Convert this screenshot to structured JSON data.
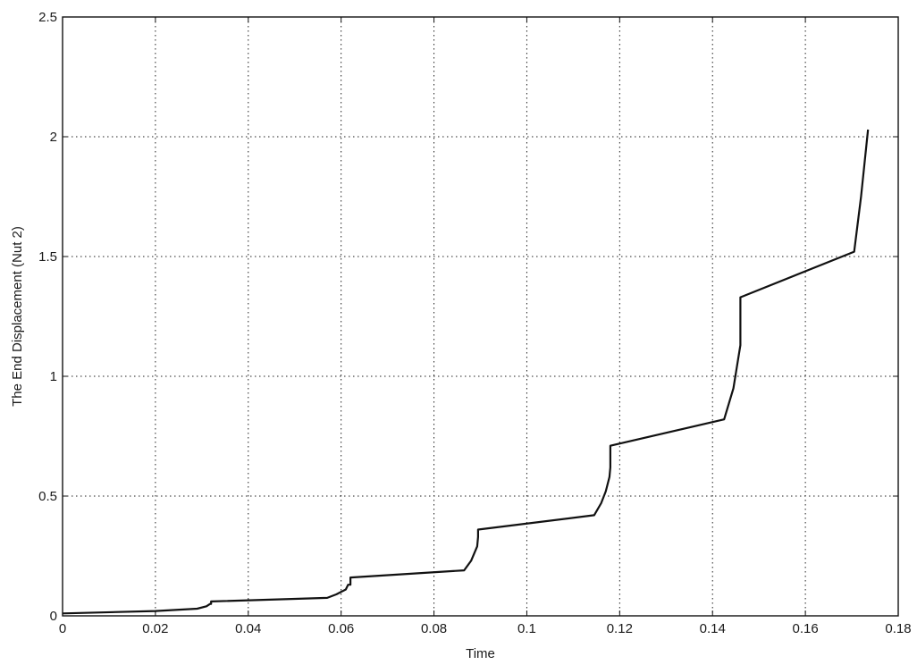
{
  "chart_data": {
    "type": "line",
    "title": "",
    "xlabel": "Time",
    "ylabel": "The End Displacement (Nut 2)",
    "xlim": [
      0,
      0.18
    ],
    "ylim": [
      0,
      2.5
    ],
    "x_ticks": [
      0,
      0.02,
      0.04,
      0.06,
      0.08,
      0.1,
      0.12,
      0.14,
      0.16,
      0.18
    ],
    "x_tick_labels": [
      "0",
      "0.02",
      "0.04",
      "0.06",
      "0.08",
      "0.1",
      "0.12",
      "0.14",
      "0.16",
      "0.18"
    ],
    "y_ticks": [
      0,
      0.5,
      1,
      1.5,
      2,
      2.5
    ],
    "y_tick_labels": [
      "0",
      "0.5",
      "1",
      "1.5",
      "2",
      "2.5"
    ],
    "grid": true,
    "legend": "none",
    "line_color": "#111111",
    "series": [
      {
        "x": [
          0,
          0.02,
          0.029,
          0.031,
          0.0318,
          0.032,
          0.032,
          0.057,
          0.059,
          0.061,
          0.0615,
          0.062,
          0.062,
          0.0865,
          0.088,
          0.0893,
          0.0895,
          0.0895,
          0.1145,
          0.116,
          0.117,
          0.1178,
          0.118,
          0.118,
          0.1425,
          0.1445,
          0.1455,
          0.146,
          0.146,
          0.1705,
          0.172,
          0.1735
        ],
        "y": [
          0.01,
          0.02,
          0.03,
          0.04,
          0.05,
          0.05,
          0.06,
          0.075,
          0.09,
          0.11,
          0.13,
          0.13,
          0.16,
          0.19,
          0.23,
          0.29,
          0.33,
          0.36,
          0.42,
          0.47,
          0.52,
          0.58,
          0.62,
          0.71,
          0.82,
          0.95,
          1.07,
          1.13,
          1.33,
          1.52,
          1.75,
          2.03
        ]
      }
    ]
  }
}
